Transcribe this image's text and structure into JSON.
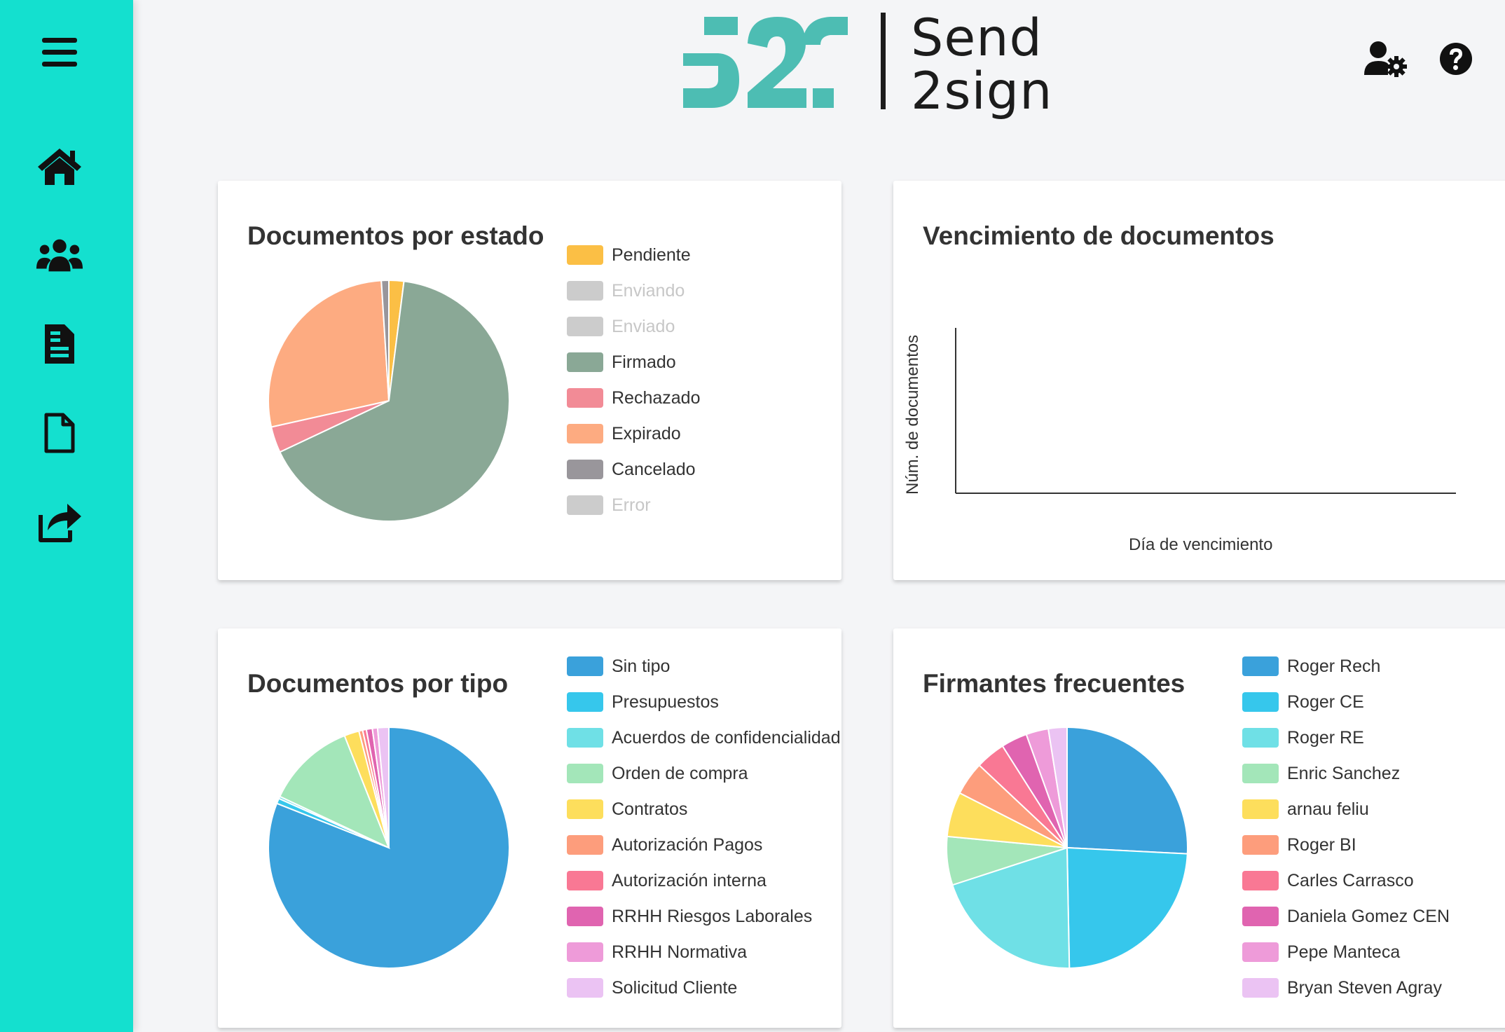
{
  "logo": {
    "mark": "S2S",
    "line1": "Send",
    "line2": "2sign",
    "mark_color": "#4dbdb3"
  },
  "sidebar": {
    "background": "#14e0cf",
    "items": [
      {
        "icon": "menu-icon"
      },
      {
        "icon": "home-icon"
      },
      {
        "icon": "users-icon"
      },
      {
        "icon": "document-text-icon"
      },
      {
        "icon": "document-blank-icon"
      },
      {
        "icon": "share-icon"
      }
    ]
  },
  "header": {
    "icons": [
      "user-settings-icon",
      "help-icon"
    ]
  },
  "cards": {
    "estado": {
      "title": "Documentos por estado"
    },
    "vencimiento": {
      "title": "Vencimiento de documentos"
    },
    "tipo": {
      "title": "Documentos por tipo"
    },
    "firmantes": {
      "title": "Firmantes frecuentes"
    }
  },
  "chart_data": [
    {
      "type": "pie",
      "title": "Documentos por estado",
      "legend_position": "right",
      "series": [
        {
          "name": "Pendiente",
          "value": 2.0,
          "color": "#fbbf45",
          "hidden": false
        },
        {
          "name": "Enviando",
          "value": 0,
          "color": "#cccccc",
          "hidden": true
        },
        {
          "name": "Enviado",
          "value": 0,
          "color": "#cccccc",
          "hidden": true
        },
        {
          "name": "Firmado",
          "value": 66.0,
          "color": "#8aa896",
          "hidden": false
        },
        {
          "name": "Rechazado",
          "value": 3.5,
          "color": "#f28b96",
          "hidden": false
        },
        {
          "name": "Expirado",
          "value": 27.5,
          "color": "#fdab81",
          "hidden": false
        },
        {
          "name": "Cancelado",
          "value": 1.0,
          "color": "#99969b",
          "hidden": false
        },
        {
          "name": "Error",
          "value": 0,
          "color": "#cccccc",
          "hidden": true
        }
      ]
    },
    {
      "type": "line",
      "title": "Vencimiento de documentos",
      "xlabel": "Día de vencimiento",
      "ylabel": "Núm. de documentos",
      "series": []
    },
    {
      "type": "pie",
      "title": "Documentos por tipo",
      "legend_position": "right",
      "series": [
        {
          "name": "Sin tipo",
          "value": 81.0,
          "color": "#3aa1db"
        },
        {
          "name": "Presupuestos",
          "value": 0.7,
          "color": "#36c7ec"
        },
        {
          "name": "Acuerdos de confidencialidad",
          "value": 0.3,
          "color": "#6fe0e6"
        },
        {
          "name": "Orden de compra",
          "value": 12.0,
          "color": "#a3e6b9"
        },
        {
          "name": "Contratos",
          "value": 2.0,
          "color": "#fdde5c"
        },
        {
          "name": "Autorización Pagos",
          "value": 0.5,
          "color": "#fd9d7c"
        },
        {
          "name": "Autorización interna",
          "value": 0.5,
          "color": "#f97894"
        },
        {
          "name": "RRHH Riesgos Laborales",
          "value": 0.8,
          "color": "#e064b0"
        },
        {
          "name": "RRHH Normativa",
          "value": 0.7,
          "color": "#ee9bd9"
        },
        {
          "name": "Solicitud Cliente",
          "value": 1.5,
          "color": "#ebc3f3"
        }
      ]
    },
    {
      "type": "pie",
      "title": "Firmantes frecuentes",
      "legend_position": "right",
      "series": [
        {
          "name": "Roger Rech",
          "value": 25.8,
          "color": "#3aa1db"
        },
        {
          "name": "Roger CE",
          "value": 23.9,
          "color": "#36c7ec"
        },
        {
          "name": "Roger RE",
          "value": 20.3,
          "color": "#6fe0e6"
        },
        {
          "name": "Enric Sanchez",
          "value": 6.5,
          "color": "#a3e6b9"
        },
        {
          "name": "arnau feliu",
          "value": 6.0,
          "color": "#fdde5c"
        },
        {
          "name": "Roger BI",
          "value": 4.5,
          "color": "#fd9d7c"
        },
        {
          "name": "Carles Carrasco",
          "value": 4.0,
          "color": "#f97894"
        },
        {
          "name": "Daniela Gomez CEN",
          "value": 3.5,
          "color": "#e064b0"
        },
        {
          "name": "Pepe Manteca",
          "value": 3.0,
          "color": "#ee9bd9"
        },
        {
          "name": "Bryan Steven Agray",
          "value": 2.5,
          "color": "#ebc3f3"
        }
      ]
    }
  ]
}
